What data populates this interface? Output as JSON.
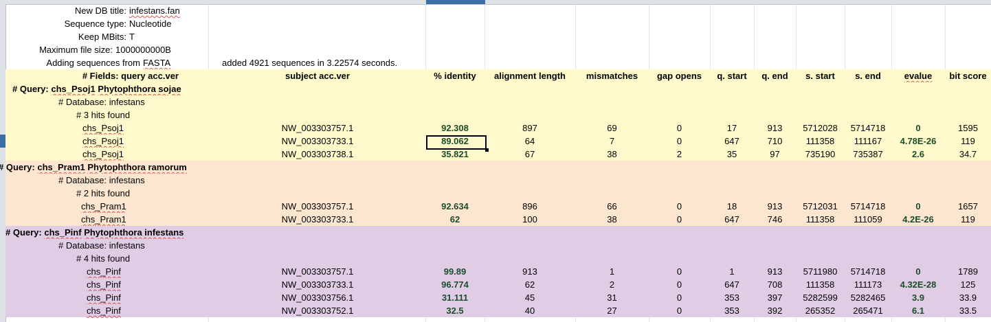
{
  "meta": [
    {
      "label": "New DB title:",
      "value": "infestans.fan"
    },
    {
      "label": "Sequence type:",
      "value": "Nucleotide"
    },
    {
      "label": "Keep MBits:",
      "value": "T"
    },
    {
      "label": "Maximum file size:",
      "value": "1000000000B"
    },
    {
      "label": "Adding sequences from",
      "value": "FASTA"
    }
  ],
  "added_message": "added 4921 sequences in 3.22574 seconds.",
  "headers": [
    "# Fields: query acc.ver",
    "subject acc.ver",
    "% identity",
    "alignment length",
    "mismatches",
    "gap opens",
    "q. start",
    "q. end",
    "s. start",
    "s. end",
    "evalue",
    "bit score"
  ],
  "groups": [
    {
      "query_prefix": "# Query:",
      "query_id": "chs_Psoj1",
      "query_desc": "Phytophthora sojae",
      "database": "# Database: infestans",
      "hits_found": "# 3 hits found",
      "hits": [
        [
          "chs_Psoj1",
          "NW_003303757.1",
          "92.308",
          "897",
          "69",
          "0",
          "17",
          "913",
          "5712028",
          "5714718",
          "0",
          "1595"
        ],
        [
          "chs_Psoj1",
          "NW_003303733.1",
          "89.062",
          "64",
          "7",
          "0",
          "647",
          "710",
          "111358",
          "111167",
          "4.78E-26",
          "119"
        ],
        [
          "chs_Psoj1",
          "NW_003303738.1",
          "35.821",
          "67",
          "38",
          "2",
          "35",
          "97",
          "735190",
          "735387",
          "2.6",
          "34.7"
        ]
      ]
    },
    {
      "query_prefix": "# Query:",
      "query_id": "chs_Pram1",
      "query_desc": "Phytophthora ramorum",
      "database": "# Database: infestans",
      "hits_found": "# 2 hits found",
      "hits": [
        [
          "chs_Pram1",
          "NW_003303757.1",
          "92.634",
          "896",
          "66",
          "0",
          "18",
          "913",
          "5712031",
          "5714718",
          "0",
          "1657"
        ],
        [
          "chs_Pram1",
          "NW_003303733.1",
          "62",
          "100",
          "38",
          "0",
          "647",
          "746",
          "111358",
          "111059",
          "4.2E-26",
          "119"
        ]
      ]
    },
    {
      "query_prefix": "# Query:",
      "query_id": "chs_Pinf",
      "query_desc": "Phytophthora infestans",
      "database": "# Database: infestans",
      "hits_found": "# 4 hits found",
      "hits": [
        [
          "chs_Pinf",
          "NW_003303757.1",
          "99.89",
          "913",
          "1",
          "0",
          "1",
          "913",
          "5711980",
          "5714718",
          "0",
          "1789"
        ],
        [
          "chs_Pinf",
          "NW_003303733.1",
          "96.774",
          "62",
          "2",
          "0",
          "647",
          "708",
          "111358",
          "111173",
          "4.32E-28",
          "125"
        ],
        [
          "chs_Pinf",
          "NW_003303756.1",
          "31.111",
          "45",
          "31",
          "0",
          "353",
          "397",
          "5282599",
          "5282465",
          "3.9",
          "33.9"
        ],
        [
          "chs_Pinf",
          "NW_003303752.1",
          "32.5",
          "40",
          "27",
          "0",
          "353",
          "392",
          "265352",
          "265471",
          "6.1",
          "33.5"
        ]
      ]
    }
  ],
  "colors": {
    "yellow": "#fff9cc",
    "orange": "#fde6cf",
    "purple": "#e0cce5",
    "green_text": "#1b4d2b"
  }
}
